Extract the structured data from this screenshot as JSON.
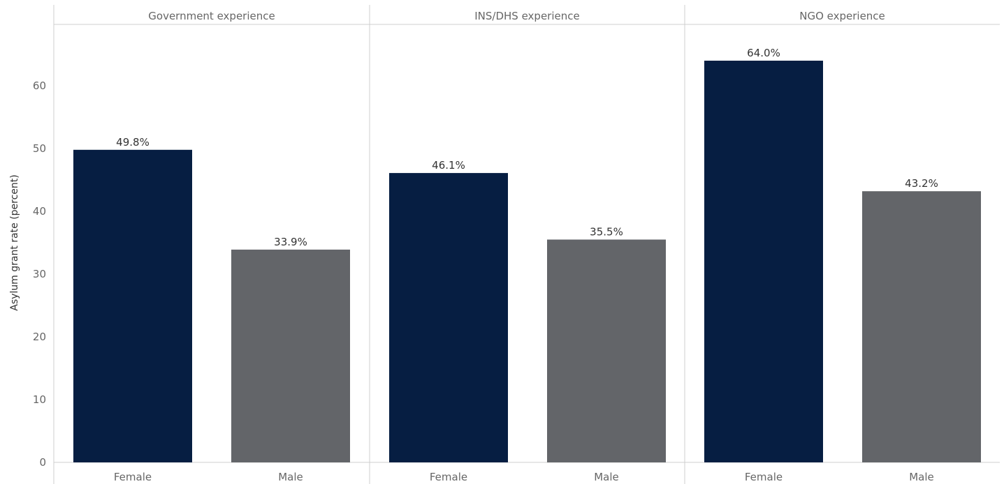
{
  "chart_data": {
    "type": "bar",
    "ylabel": "Asylum grant rate (percent)",
    "ylim": [
      0,
      70
    ],
    "yticks": [
      0,
      10,
      20,
      30,
      40,
      50,
      60
    ],
    "grid": false,
    "colors": {
      "Female": "#061e42",
      "Male": "#636569"
    },
    "panels": [
      {
        "title": "Government experience",
        "categories": [
          "Female",
          "Male"
        ],
        "values": [
          49.8,
          33.9
        ],
        "labels": [
          "49.8%",
          "33.9%"
        ]
      },
      {
        "title": "INS/DHS experience",
        "categories": [
          "Female",
          "Male"
        ],
        "values": [
          46.1,
          35.5
        ],
        "labels": [
          "46.1%",
          "35.5%"
        ]
      },
      {
        "title": "NGO experience",
        "categories": [
          "Female",
          "Male"
        ],
        "values": [
          64.0,
          43.2
        ],
        "labels": [
          "64.0%",
          "43.2%"
        ]
      }
    ]
  }
}
